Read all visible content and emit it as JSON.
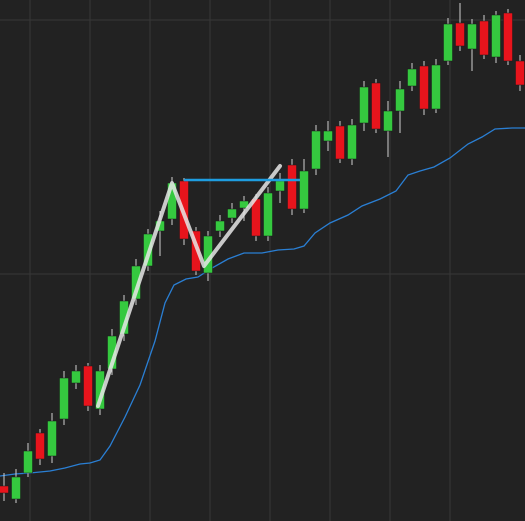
{
  "colors": {
    "background": "#222222",
    "grid": "#383838",
    "up": "#35c93f",
    "down": "#e8141c",
    "wick": "#d0d0d0",
    "ma_line": "#2a7fd4",
    "level_line": "#1e9de0",
    "pattern_line": "#e6e6e6"
  },
  "chart_data": {
    "type": "candlestick",
    "title": "",
    "xlabel": "",
    "ylabel": "",
    "grid": true,
    "ylim": [
      0,
      521
    ],
    "candles": [
      {
        "x": 4,
        "open": 35,
        "close": 28,
        "high": 48,
        "low": 20
      },
      {
        "x": 16,
        "open": 22,
        "close": 44,
        "high": 52,
        "low": 18
      },
      {
        "x": 28,
        "open": 48,
        "close": 70,
        "high": 78,
        "low": 44
      },
      {
        "x": 40,
        "open": 88,
        "close": 62,
        "high": 92,
        "low": 56
      },
      {
        "x": 52,
        "open": 65,
        "close": 100,
        "high": 108,
        "low": 58
      },
      {
        "x": 64,
        "open": 102,
        "close": 143,
        "high": 150,
        "low": 96
      },
      {
        "x": 76,
        "open": 138,
        "close": 150,
        "high": 156,
        "low": 132
      },
      {
        "x": 88,
        "open": 155,
        "close": 115,
        "high": 158,
        "low": 110
      },
      {
        "x": 100,
        "open": 112,
        "close": 150,
        "high": 156,
        "low": 106
      },
      {
        "x": 112,
        "open": 152,
        "close": 185,
        "high": 192,
        "low": 146
      },
      {
        "x": 124,
        "open": 187,
        "close": 220,
        "high": 226,
        "low": 180
      },
      {
        "x": 136,
        "open": 222,
        "close": 255,
        "high": 262,
        "low": 216
      },
      {
        "x": 148,
        "open": 255,
        "close": 287,
        "high": 292,
        "low": 250
      },
      {
        "x": 160,
        "open": 290,
        "close": 300,
        "high": 310,
        "low": 265
      },
      {
        "x": 172,
        "open": 302,
        "close": 338,
        "high": 344,
        "low": 296
      },
      {
        "x": 184,
        "open": 340,
        "close": 282,
        "high": 343,
        "low": 276
      },
      {
        "x": 196,
        "open": 290,
        "close": 250,
        "high": 294,
        "low": 246
      },
      {
        "x": 208,
        "open": 248,
        "close": 285,
        "high": 290,
        "low": 240
      },
      {
        "x": 220,
        "open": 290,
        "close": 300,
        "high": 306,
        "low": 284
      },
      {
        "x": 232,
        "open": 303,
        "close": 312,
        "high": 318,
        "low": 298
      },
      {
        "x": 244,
        "open": 313,
        "close": 320,
        "high": 325,
        "low": 300
      },
      {
        "x": 256,
        "open": 322,
        "close": 285,
        "high": 327,
        "low": 280
      },
      {
        "x": 268,
        "open": 285,
        "close": 328,
        "high": 334,
        "low": 280
      },
      {
        "x": 280,
        "open": 330,
        "close": 340,
        "high": 348,
        "low": 318
      },
      {
        "x": 292,
        "open": 356,
        "close": 312,
        "high": 362,
        "low": 306
      },
      {
        "x": 304,
        "open": 312,
        "close": 350,
        "high": 362,
        "low": 308
      },
      {
        "x": 316,
        "open": 352,
        "close": 390,
        "high": 396,
        "low": 346
      },
      {
        "x": 328,
        "open": 380,
        "close": 390,
        "high": 400,
        "low": 370
      },
      {
        "x": 340,
        "open": 395,
        "close": 362,
        "high": 400,
        "low": 358
      },
      {
        "x": 352,
        "open": 362,
        "close": 396,
        "high": 402,
        "low": 356
      },
      {
        "x": 364,
        "open": 398,
        "close": 434,
        "high": 440,
        "low": 390
      },
      {
        "x": 376,
        "open": 438,
        "close": 392,
        "high": 442,
        "low": 388
      },
      {
        "x": 388,
        "open": 390,
        "close": 410,
        "high": 420,
        "low": 364
      },
      {
        "x": 400,
        "open": 410,
        "close": 432,
        "high": 440,
        "low": 388
      },
      {
        "x": 412,
        "open": 435,
        "close": 452,
        "high": 458,
        "low": 430
      },
      {
        "x": 424,
        "open": 455,
        "close": 412,
        "high": 460,
        "low": 406
      },
      {
        "x": 436,
        "open": 412,
        "close": 456,
        "high": 462,
        "low": 408
      },
      {
        "x": 448,
        "open": 460,
        "close": 497,
        "high": 503,
        "low": 456
      },
      {
        "x": 460,
        "open": 498,
        "close": 475,
        "high": 518,
        "low": 470
      },
      {
        "x": 472,
        "open": 472,
        "close": 497,
        "high": 502,
        "low": 450
      },
      {
        "x": 484,
        "open": 500,
        "close": 466,
        "high": 506,
        "low": 462
      },
      {
        "x": 496,
        "open": 464,
        "close": 506,
        "high": 510,
        "low": 458
      },
      {
        "x": 508,
        "open": 508,
        "close": 460,
        "high": 512,
        "low": 456
      },
      {
        "x": 520,
        "open": 460,
        "close": 436,
        "high": 466,
        "low": 430
      }
    ],
    "moving_average": [
      [
        0,
        45
      ],
      [
        15,
        47
      ],
      [
        30,
        48
      ],
      [
        50,
        50
      ],
      [
        65,
        53
      ],
      [
        80,
        57
      ],
      [
        90,
        58
      ],
      [
        100,
        61
      ],
      [
        110,
        75
      ],
      [
        125,
        104
      ],
      [
        140,
        136
      ],
      [
        155,
        180
      ],
      [
        165,
        218
      ],
      [
        174,
        236
      ],
      [
        186,
        242
      ],
      [
        198,
        244
      ],
      [
        212,
        253
      ],
      [
        228,
        262
      ],
      [
        244,
        268
      ],
      [
        262,
        268
      ],
      [
        278,
        271
      ],
      [
        294,
        272
      ],
      [
        304,
        275
      ],
      [
        315,
        288
      ],
      [
        330,
        298
      ],
      [
        348,
        306
      ],
      [
        362,
        315
      ],
      [
        380,
        322
      ],
      [
        396,
        330
      ],
      [
        408,
        346
      ],
      [
        420,
        350
      ],
      [
        434,
        354
      ],
      [
        450,
        363
      ],
      [
        468,
        377
      ],
      [
        482,
        384
      ],
      [
        495,
        392
      ],
      [
        512,
        393
      ],
      [
        525,
        393
      ]
    ],
    "pattern_path": [
      [
        98,
        115
      ],
      [
        172,
        338
      ],
      [
        204,
        255
      ],
      [
        280,
        355
      ]
    ],
    "level_line": {
      "x_start": 184,
      "x_end": 300,
      "y": 341
    }
  }
}
